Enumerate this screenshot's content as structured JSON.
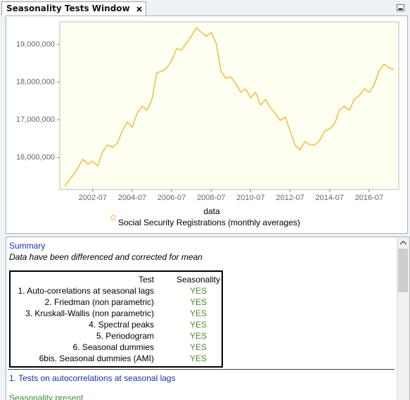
{
  "window_title": "Seasonality Tests Window",
  "chart_data": {
    "type": "line",
    "legend_title": "data",
    "x": [
      "2001-02",
      "2001-08",
      "2002-01",
      "2002-04",
      "2002-07",
      "2002-10",
      "2003-01",
      "2003-04",
      "2003-07",
      "2003-10",
      "2004-01",
      "2004-04",
      "2004-07",
      "2004-10",
      "2005-01",
      "2005-04",
      "2005-07",
      "2005-10",
      "2006-01",
      "2006-04",
      "2006-07",
      "2006-10",
      "2007-01",
      "2007-04",
      "2007-07",
      "2007-10",
      "2008-01",
      "2008-04",
      "2008-07",
      "2008-10",
      "2009-01",
      "2009-04",
      "2009-07",
      "2009-10",
      "2010-01",
      "2010-04",
      "2010-07",
      "2010-10",
      "2011-01",
      "2011-04",
      "2011-07",
      "2011-10",
      "2012-01",
      "2012-04",
      "2012-07",
      "2012-10",
      "2013-01",
      "2013-04",
      "2013-07",
      "2013-10",
      "2014-01",
      "2014-04",
      "2014-07",
      "2014-10",
      "2015-01",
      "2015-04",
      "2015-07",
      "2015-10",
      "2016-01",
      "2016-04",
      "2016-07",
      "2016-10",
      "2017-01",
      "2017-04",
      "2017-07",
      "2017-10"
    ],
    "series": [
      {
        "name": "Social Security Registrations (monthly averages)",
        "color": "#f2b320",
        "values": [
          15240000,
          15580000,
          15950000,
          15820000,
          15900000,
          15770000,
          16140000,
          16330000,
          16270000,
          16380000,
          16700000,
          16940000,
          16800000,
          17170000,
          17360000,
          17260000,
          17540000,
          18250000,
          18290000,
          18380000,
          18570000,
          18890000,
          18850000,
          19040000,
          19220000,
          19450000,
          19320000,
          19220000,
          19320000,
          19040000,
          18290000,
          18100000,
          18140000,
          17950000,
          17730000,
          17820000,
          17580000,
          17730000,
          17390000,
          17540000,
          17320000,
          17170000,
          16980000,
          17070000,
          16700000,
          16330000,
          16200000,
          16420000,
          16330000,
          16330000,
          16460000,
          16700000,
          16760000,
          16890000,
          17260000,
          17360000,
          17260000,
          17540000,
          17640000,
          17820000,
          17730000,
          17920000,
          18290000,
          18480000,
          18380000,
          18330000
        ]
      }
    ],
    "xlim": [
      "2000-11",
      "2018-01"
    ],
    "xticks": [
      "2002-07",
      "2004-07",
      "2006-07",
      "2008-07",
      "2010-07",
      "2012-07",
      "2014-07",
      "2016-07"
    ],
    "ylim": [
      15150000,
      19600000
    ],
    "yticks": [
      {
        "value": 16000000,
        "label": "16,000,000"
      },
      {
        "value": 17000000,
        "label": "17,000,000"
      },
      {
        "value": 18000000,
        "label": "18,000,000"
      },
      {
        "value": 19000000,
        "label": "19,000,000"
      }
    ]
  },
  "summary": {
    "title": "Summary",
    "note": "Data have been differenced and corrected for mean",
    "columns": [
      "Test",
      "Seasonality"
    ],
    "rows": [
      [
        "1. Auto-correlations at seasonal lags",
        "YES"
      ],
      [
        "2. Friedman (non parametric)",
        "YES"
      ],
      [
        "3. Kruskall-Wallis (non parametric)",
        "YES"
      ],
      [
        "4. Spectral peaks",
        "YES"
      ],
      [
        "5. Periodogram",
        "YES"
      ],
      [
        "6. Seasonal dummies",
        "YES"
      ],
      [
        "6bis. Seasonal dummies (AMI)",
        "YES"
      ]
    ]
  },
  "section": {
    "title": "1. Tests on autocorrelations at seasonal lags",
    "result": "Seasonality present"
  }
}
